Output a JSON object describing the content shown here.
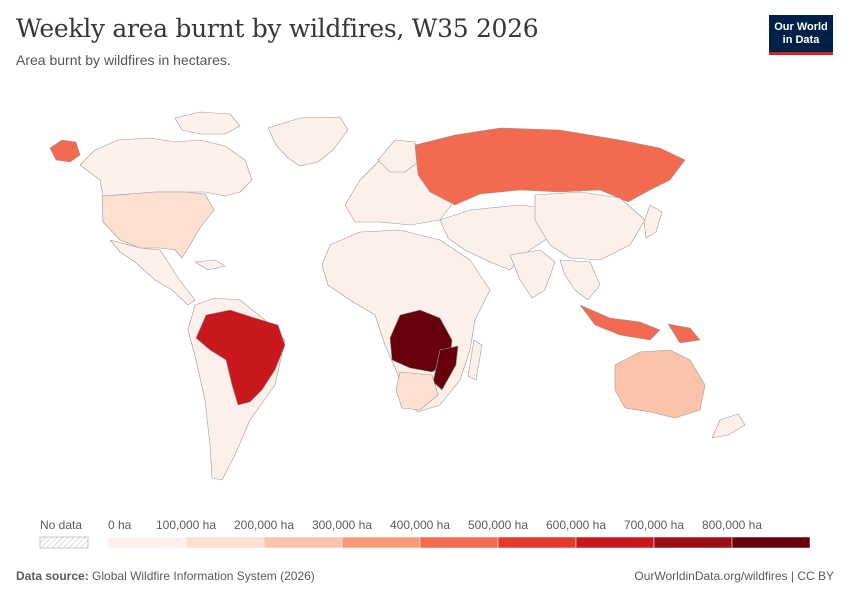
{
  "header": {
    "title": "Weekly area burnt by wildfires, W35 2026",
    "subtitle": "Area burnt by wildfires in hectares."
  },
  "logo": {
    "line1": "Our World",
    "line2": "in Data"
  },
  "colors": {
    "brand_navy": "#002147",
    "brand_red": "#ce261e",
    "land_default": "#fdf0ea",
    "border": "#9a9a9a"
  },
  "legend": {
    "no_data_label": "No data",
    "bins": [
      {
        "label": "0 ha",
        "color": "#fef1ec"
      },
      {
        "label": "100,000 ha",
        "color": "#fde0d0"
      },
      {
        "label": "200,000 ha",
        "color": "#fbc4aa"
      },
      {
        "label": "300,000 ha",
        "color": "#f99a78"
      },
      {
        "label": "400,000 ha",
        "color": "#f26b50"
      },
      {
        "label": "500,000 ha",
        "color": "#e2392c"
      },
      {
        "label": "600,000 ha",
        "color": "#c8171d"
      },
      {
        "label": "700,000 ha",
        "color": "#9c0e16"
      },
      {
        "label": "800,000 ha",
        "color": "#67000d"
      }
    ]
  },
  "regions": [
    {
      "name": "United States",
      "bin": 1
    },
    {
      "name": "Canada",
      "bin": 0
    },
    {
      "name": "Brazil",
      "bin": 6
    },
    {
      "name": "Russia",
      "bin": 4
    },
    {
      "name": "Australia",
      "bin": 2
    },
    {
      "name": "Indonesia",
      "bin": 4
    },
    {
      "name": "Papua New Guinea",
      "bin": 4
    },
    {
      "name": "DR Congo",
      "bin": 8
    },
    {
      "name": "Angola",
      "bin": 8
    },
    {
      "name": "Zambia",
      "bin": 8
    },
    {
      "name": "Mozambique",
      "bin": 8
    },
    {
      "name": "Botswana",
      "bin": 1
    },
    {
      "name": "South Africa",
      "bin": 1
    },
    {
      "name": "Mexico",
      "bin": 0
    },
    {
      "name": "Alaska",
      "bin": 4
    }
  ],
  "footer": {
    "source_label": "Data source:",
    "source_text": "Global Wildfire Information System (2026)",
    "right_text": "OurWorldinData.org/wildfires | CC BY"
  }
}
